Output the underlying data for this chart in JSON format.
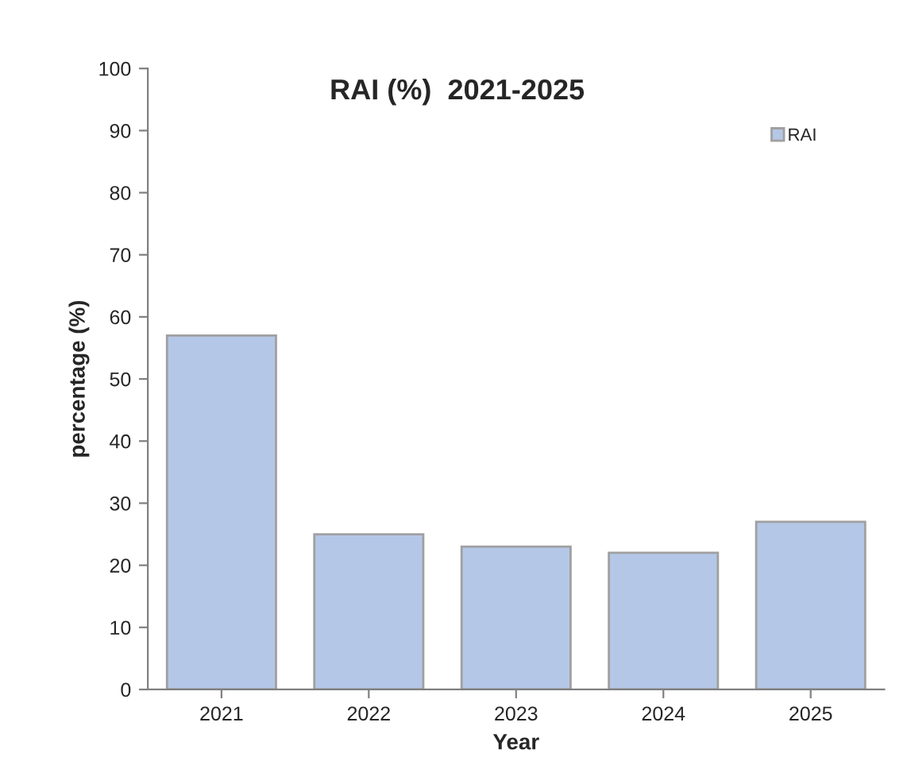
{
  "chart_data": {
    "type": "bar",
    "title": "RAI (%)  2021-2025",
    "xlabel": "Year",
    "ylabel": "percentage (%)",
    "categories": [
      "2021",
      "2022",
      "2023",
      "2024",
      "2025"
    ],
    "series": [
      {
        "name": "RAI",
        "color": "#b4c7e7",
        "values": [
          57,
          25,
          23,
          22,
          27
        ]
      }
    ],
    "ylim": [
      0,
      100
    ],
    "yticks": [
      0,
      10,
      20,
      30,
      40,
      50,
      60,
      70,
      80,
      90,
      100
    ],
    "grid": false,
    "legend": "top right"
  }
}
